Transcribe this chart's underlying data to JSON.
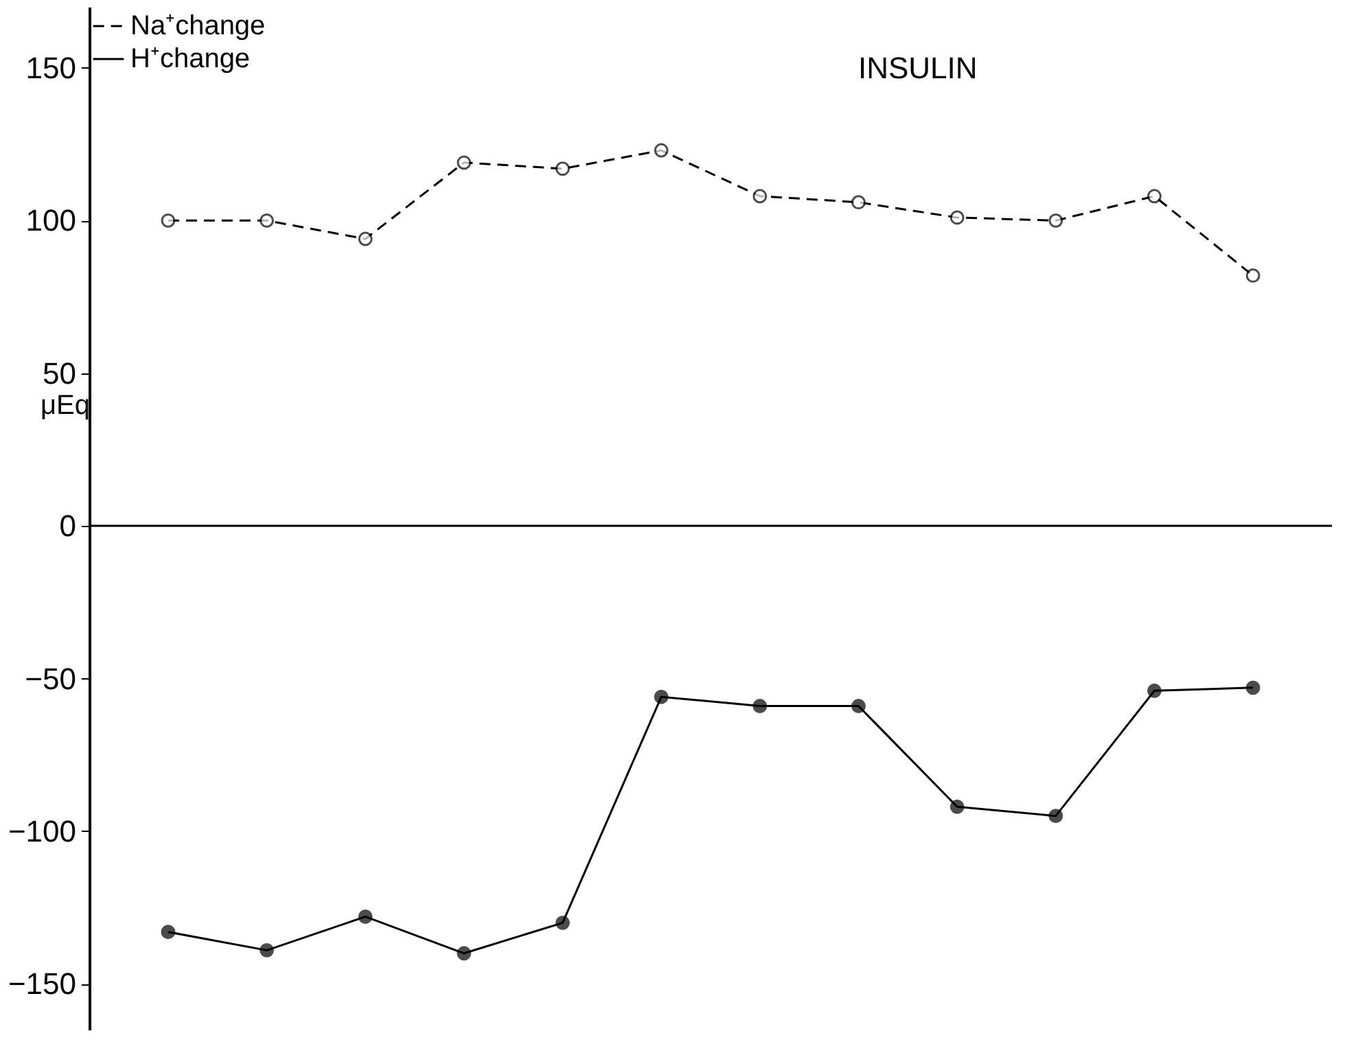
{
  "chart_data": {
    "type": "line",
    "title": "INSULIN",
    "ylabel": "μEq",
    "categories": [
      null,
      null,
      null,
      null,
      null,
      null,
      null,
      null,
      null,
      null,
      null,
      null
    ],
    "series": [
      {
        "name": "Na⁺change",
        "color": "#000000",
        "line_style": "dashed",
        "values": [
          100,
          100,
          94,
          119,
          117,
          123,
          108,
          106,
          101,
          100,
          108,
          82
        ]
      },
      {
        "name": "H⁺change",
        "color": "#000000",
        "line_style": "solid",
        "values": [
          -133,
          -139,
          -128,
          -140,
          -130,
          -56,
          -59,
          -59,
          -92,
          -95,
          -54,
          -53
        ]
      }
    ],
    "ylim": [
      -165,
      170
    ],
    "yticks": [
      150,
      100,
      50,
      0,
      -50,
      -100,
      -150
    ],
    "ref_lines": [
      {
        "axis": "y",
        "value": 0
      }
    ],
    "marker": "circle",
    "grid": false,
    "legend": "top left",
    "tick_labels": "y"
  }
}
